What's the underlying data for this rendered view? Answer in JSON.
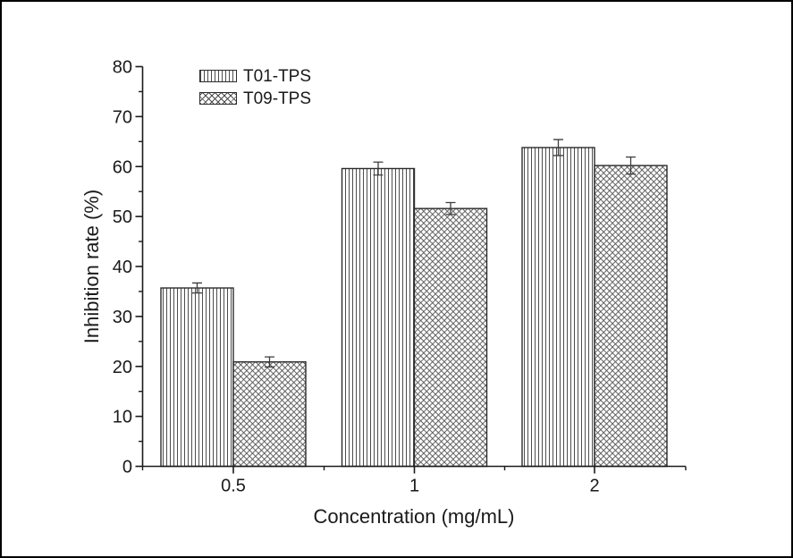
{
  "figure": {
    "background": "#ffffff",
    "frame_color": "#000000"
  },
  "chart_data": {
    "type": "bar",
    "title": "",
    "xlabel": "Concentration (mg/mL)",
    "ylabel": "Inhibition rate (%)",
    "categories": [
      "0.5",
      "1",
      "2"
    ],
    "series": [
      {
        "name": "T01-TPS",
        "hatch": "vertical-lines",
        "values": [
          35.7,
          59.6,
          63.8
        ],
        "errors": [
          1.0,
          1.3,
          1.6
        ]
      },
      {
        "name": "T09-TPS",
        "hatch": "crosshatch",
        "values": [
          20.9,
          51.6,
          60.2
        ],
        "errors": [
          1.0,
          1.2,
          1.7
        ]
      }
    ],
    "ylim": [
      0,
      80
    ],
    "y_major_ticks": [
      0,
      10,
      20,
      30,
      40,
      50,
      60,
      70,
      80
    ],
    "y_minor_ticks": [
      5,
      15,
      25,
      35,
      45,
      55,
      65,
      75
    ],
    "grid": false,
    "legend_position": "top-left-inside",
    "bar_fill": "#ffffff",
    "bar_outline": "#2b2b2b",
    "hatch_color": "#4d4d4d",
    "axis_color": "#1a1a1a",
    "tick_label_color": "#1a1a1a",
    "error_bar_color": "#3c3c3c"
  }
}
